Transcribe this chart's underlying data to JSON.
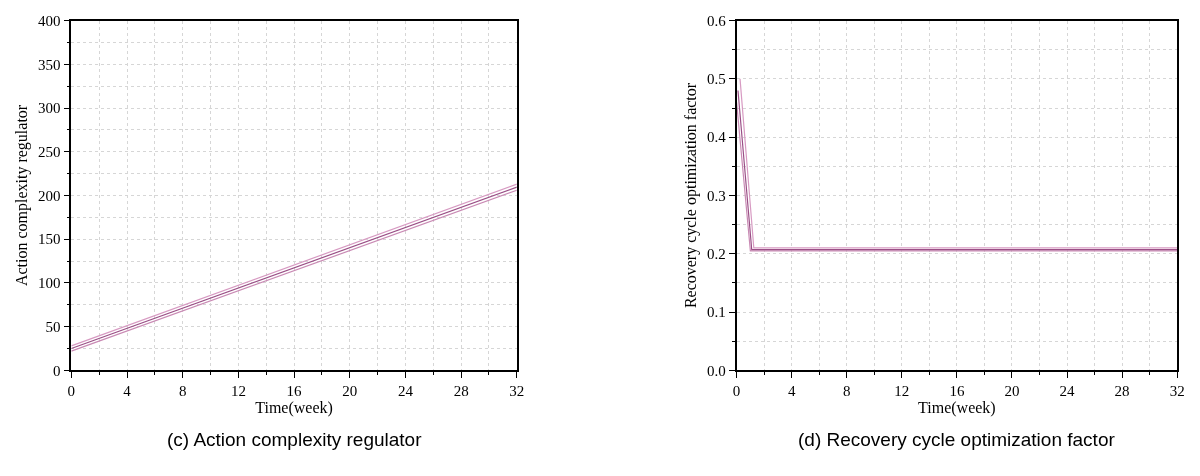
{
  "chart_data": [
    {
      "type": "line",
      "xlabel": "Time(week)",
      "ylabel": "Action complexity regulator",
      "annotations": [
        "(c) Action complexity regulator"
      ],
      "xlim": [
        0,
        32
      ],
      "ylim": [
        0,
        400
      ],
      "xticks": [
        0,
        4,
        8,
        12,
        16,
        20,
        24,
        28,
        32
      ],
      "yticks": [
        0,
        50,
        100,
        150,
        200,
        250,
        300,
        350,
        400
      ],
      "grid": true,
      "line_style": "solid",
      "series": [
        {
          "color": "#c98ab4",
          "x": [
            0,
            32
          ],
          "values": [
            22,
            206
          ]
        },
        {
          "color": "#9a4f86",
          "x": [
            0,
            32
          ],
          "values": [
            25,
            209.5
          ]
        },
        {
          "color": "#d79ac2",
          "x": [
            0,
            32
          ],
          "values": [
            28,
            213
          ]
        }
      ]
    },
    {
      "type": "line",
      "xlabel": "Time(week)",
      "ylabel": "Recovery cycle optimization factor",
      "annotations": [
        "(d) Recovery cycle optimization factor"
      ],
      "xlim": [
        0,
        32
      ],
      "ylim": [
        0,
        0.6
      ],
      "xticks": [
        0,
        4,
        8,
        12,
        16,
        20,
        24,
        28,
        32
      ],
      "yticks": [
        {
          "value": 0,
          "label": "0.0"
        },
        0.1,
        0.2,
        0.3,
        0.4,
        0.5,
        0.6
      ],
      "grid": true,
      "line_style": "solid",
      "series": [
        {
          "color": "#c98ab4",
          "x": [
            0,
            1.0,
            32
          ],
          "values": [
            0.46,
            0.205,
            0.205
          ]
        },
        {
          "color": "#9a4f86",
          "x": [
            0.1,
            1.1,
            32
          ],
          "values": [
            0.48,
            0.207,
            0.207
          ]
        },
        {
          "color": "#d79ac2",
          "x": [
            0.25,
            1.25,
            32
          ],
          "values": [
            0.5,
            0.21,
            0.21
          ]
        }
      ]
    }
  ]
}
